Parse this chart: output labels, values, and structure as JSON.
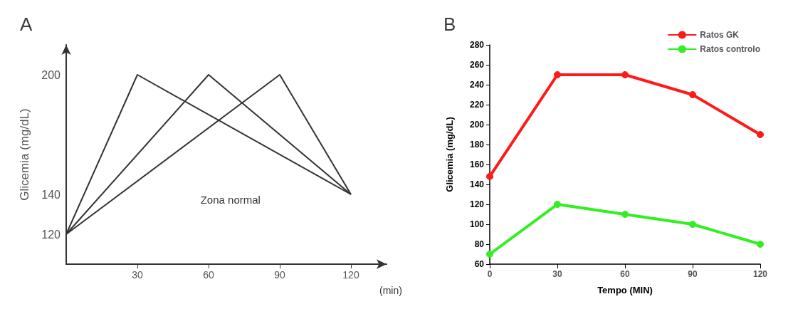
{
  "chart_data": [
    {
      "type": "line",
      "title": "A",
      "xlabel": "(min)",
      "ylabel": "Glicemia (mg/dL)",
      "marker": "none",
      "xlim": [
        0,
        135
      ],
      "xticks": [
        30,
        60,
        90,
        120
      ],
      "ylim": [
        105,
        215
      ],
      "yticks": [
        120,
        140,
        200
      ],
      "annotations": [
        "Zona normal"
      ],
      "series": [
        {
          "color": "#333333",
          "x": [
            0,
            30,
            120
          ],
          "values": [
            120,
            200,
            140
          ]
        },
        {
          "color": "#333333",
          "x": [
            0,
            60,
            120
          ],
          "values": [
            120,
            200,
            140
          ]
        },
        {
          "color": "#333333",
          "x": [
            0,
            90,
            120
          ],
          "values": [
            120,
            200,
            140
          ]
        }
      ]
    },
    {
      "type": "line",
      "title": "B",
      "xlabel": "Tempo (MIN)",
      "ylabel": "Glicemia (mg/dL)",
      "marker": "circle",
      "legend": "top right",
      "xlim": [
        0,
        120
      ],
      "xticks": [
        0,
        30,
        60,
        90,
        120
      ],
      "ylim": [
        60,
        280
      ],
      "yticks": [
        60,
        80,
        100,
        120,
        140,
        160,
        180,
        200,
        220,
        240,
        260,
        280
      ],
      "series": [
        {
          "name": "Ratos GK",
          "color": "#ff1a1a",
          "x": [
            0,
            30,
            60,
            90,
            120
          ],
          "values": [
            148,
            250,
            250,
            230,
            190
          ]
        },
        {
          "name": "Ratos controlo",
          "color": "#33ee22",
          "x": [
            0,
            30,
            60,
            90,
            120
          ],
          "values": [
            70,
            120,
            110,
            100,
            80
          ]
        }
      ]
    }
  ]
}
